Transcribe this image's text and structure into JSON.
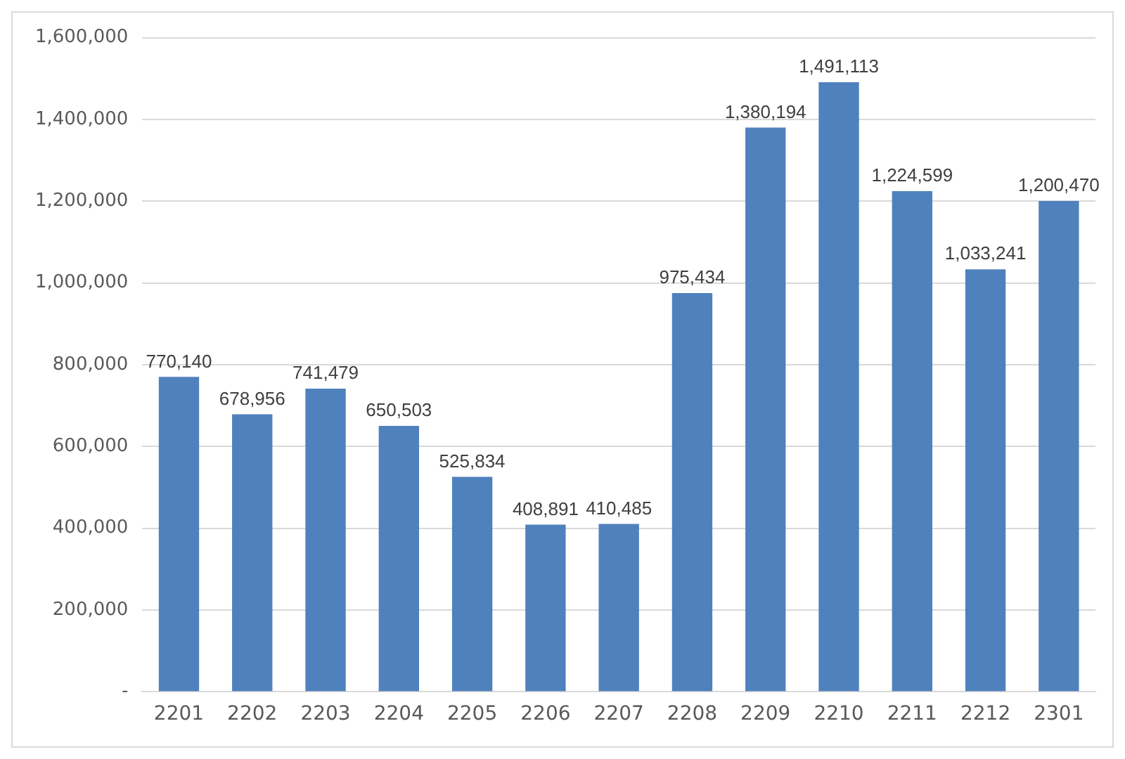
{
  "chart_data": {
    "type": "bar",
    "categories": [
      "2201",
      "2202",
      "2203",
      "2204",
      "2205",
      "2206",
      "2207",
      "2208",
      "2209",
      "2210",
      "2211",
      "2212",
      "2301"
    ],
    "values": [
      770140,
      678956,
      741479,
      650503,
      525834,
      408891,
      410485,
      975434,
      1380194,
      1491113,
      1224599,
      1033241,
      1200470
    ],
    "value_labels": [
      "770,140",
      "678,956",
      "741,479",
      "650,503",
      "525,834",
      "408,891",
      "410,485",
      "975,434",
      "1,380,194",
      "1,491,113",
      "1,224,599",
      "1,033,241",
      "1,200,470"
    ],
    "color": "#4f81bd",
    "ylim": [
      0,
      1600000
    ],
    "yticks": [
      {
        "value": 0,
        "label": "-"
      },
      {
        "value": 200000,
        "label": "200,000"
      },
      {
        "value": 400000,
        "label": "400,000"
      },
      {
        "value": 600000,
        "label": "600,000"
      },
      {
        "value": 800000,
        "label": "800,000"
      },
      {
        "value": 1000000,
        "label": "1,000,000"
      },
      {
        "value": 1200000,
        "label": "1,200,000"
      },
      {
        "value": 1400000,
        "label": "1,400,000"
      },
      {
        "value": 1600000,
        "label": "1,600,000"
      }
    ],
    "grid": "y"
  }
}
